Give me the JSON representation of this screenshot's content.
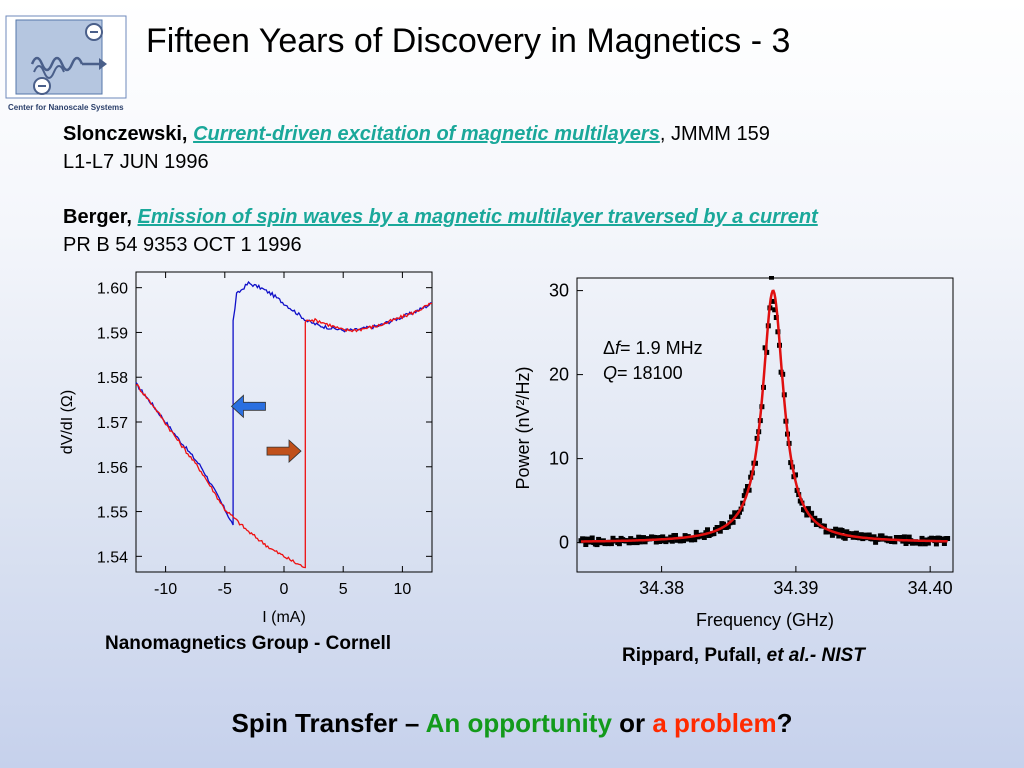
{
  "header": {
    "logo_text": "Center for Nanoscale Systems",
    "title": "Fifteen Years of Discovery in Magnetics - 3"
  },
  "references": [
    {
      "author": "Slonczewski,",
      "paper": "Current-driven excitation of magnetic multilayers",
      "citation_tail": ", JMMM 159",
      "citation_line2": "L1-L7 JUN 1996"
    },
    {
      "author": "Berger,",
      "paper": "Emission of spin waves by a magnetic multilayer traversed by a current",
      "citation_tail": "",
      "citation_line2": "PR B 54 9353 OCT 1 1996"
    }
  ],
  "captions": {
    "left": "Nanomagnetics Group - Cornell",
    "right_prefix": "Rippard, Pufall, ",
    "right_italic": "et al.- NIST"
  },
  "bottom_line": {
    "part1": "Spin Transfer – ",
    "part2": "An opportunity",
    "part3": " or ",
    "part4": "a problem",
    "part5": "?"
  },
  "colors": {
    "link_teal": "#1aa89a",
    "blue_trace": "#1010c8",
    "red_trace": "#ee1010",
    "arrow_blue": "#2a6fe0",
    "arrow_orange": "#c0501a",
    "green": "#139a1b",
    "red": "#ff2a00"
  },
  "chart_data": [
    {
      "type": "line",
      "xlabel": "I (mA)",
      "ylabel": "dV/dI (Ω)",
      "xlim": [
        -12.5,
        12.5
      ],
      "ylim": [
        1.5365,
        1.6035
      ],
      "xticks": [
        -10,
        -5,
        0,
        5,
        10
      ],
      "xtick_labels": [
        "-10",
        "-5",
        "0",
        "5",
        "10"
      ],
      "yticks": [
        1.54,
        1.55,
        1.56,
        1.57,
        1.58,
        1.59,
        1.6
      ],
      "ytick_labels": [
        "1.54",
        "1.55",
        "1.56",
        "1.57",
        "1.58",
        "1.59",
        "1.60"
      ],
      "grid": false,
      "series": [
        {
          "color": "#1010c8",
          "x": [
            -12.5,
            -11,
            -9,
            -7,
            -5.5,
            -4.3,
            -4.3,
            -4.0,
            -3.0,
            -2.0,
            -1.0,
            0.0,
            1.0,
            2.0,
            3.0,
            4.0,
            5.0,
            6.0,
            7.0,
            8.0,
            9.0,
            10.0,
            11.0,
            12.5
          ],
          "y": [
            1.5785,
            1.5735,
            1.5665,
            1.56,
            1.553,
            1.547,
            1.5925,
            1.5985,
            1.601,
            1.6,
            1.5985,
            1.5965,
            1.5945,
            1.5925,
            1.5915,
            1.591,
            1.5905,
            1.5905,
            1.591,
            1.5915,
            1.5925,
            1.5935,
            1.5945,
            1.5965
          ]
        },
        {
          "color": "#ee1010",
          "x": [
            -12.5,
            -11,
            -9,
            -7,
            -5,
            -3,
            -1,
            0,
            1,
            1.8,
            1.8,
            2.0,
            3.0,
            4.0,
            5.0,
            6.0,
            7.0,
            8.0,
            9.0,
            10.0,
            11.0,
            12.5
          ],
          "y": [
            1.5785,
            1.5735,
            1.566,
            1.559,
            1.5505,
            1.5455,
            1.5415,
            1.54,
            1.5385,
            1.5375,
            1.592,
            1.593,
            1.5925,
            1.5915,
            1.5905,
            1.5905,
            1.591,
            1.5915,
            1.5925,
            1.5935,
            1.5945,
            1.5965
          ]
        }
      ],
      "annotations": [
        {
          "type": "arrow",
          "direction": "left",
          "color": "#2a6fe0",
          "x": -3.0,
          "y": 1.5735
        },
        {
          "type": "arrow",
          "direction": "right",
          "color": "#c0501a",
          "x": 0.0,
          "y": 1.5635
        }
      ]
    },
    {
      "type": "scatter",
      "xlabel": "Frequency (GHz)",
      "ylabel": "Power (nV²/Hz)",
      "xlim": [
        34.3737,
        34.4017
      ],
      "ylim": [
        -3.5,
        31.5
      ],
      "xticks": [
        34.38,
        34.39,
        34.4
      ],
      "xtick_labels": [
        "34.38",
        "34.39",
        "34.40"
      ],
      "yticks": [
        0,
        10,
        20,
        30
      ],
      "ytick_labels": [
        "0",
        "10",
        "20",
        "30"
      ],
      "grid": false,
      "fit": {
        "type": "lorentzian",
        "center": 34.3883,
        "fwhm": 0.0019,
        "peak": 30,
        "baseline": 0,
        "color": "#e01010"
      },
      "series": [
        {
          "color": "#000000",
          "marker": "square",
          "note": "measured points along fit with scatter"
        }
      ],
      "annotation_lines": [
        {
          "prefix": "Δ",
          "var": "f",
          "text": "= 1.9 MHz"
        },
        {
          "prefix": "",
          "var": "Q",
          "text": "= 18100"
        }
      ]
    }
  ]
}
